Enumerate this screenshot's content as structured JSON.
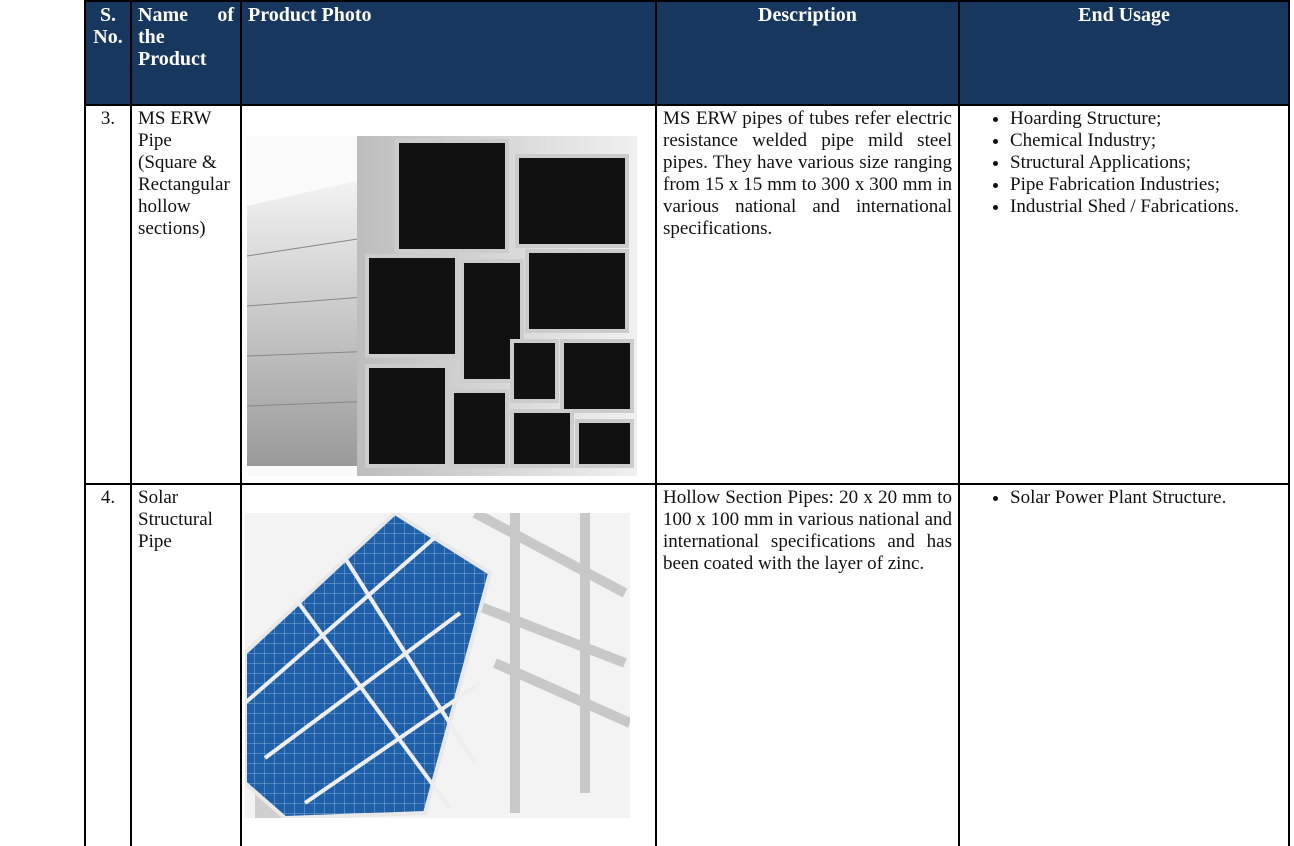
{
  "table": {
    "header": [
      "S. No.",
      "Name of the Product",
      "Product Photo",
      "Description",
      "End Usage"
    ],
    "rows": [
      {
        "sno": "3.",
        "name": "MS ERW Pipe (Square & Rectangular hollow sections)",
        "description": "MS ERW pipes of tubes refer electric resistance welded pipe mild steel pipes. They have various size ranging from 15 x 15 mm to 300 x 300 mm in various national and international specifications.",
        "usage": [
          "Hoarding Structure;",
          "Chemical Industry;",
          "Structural Applications;",
          "Pipe Fabrication Industries;",
          "Industrial Shed / Fabrications."
        ]
      },
      {
        "sno": "4.",
        "name": "Solar Structural Pipe",
        "description": "Hollow Section Pipes: 20 x 20 mm to 100 x 100 mm in various national and international specifications and has been coated with the layer of zinc.",
        "usage": [
          "Solar Power Plant Structure."
        ]
      }
    ]
  }
}
